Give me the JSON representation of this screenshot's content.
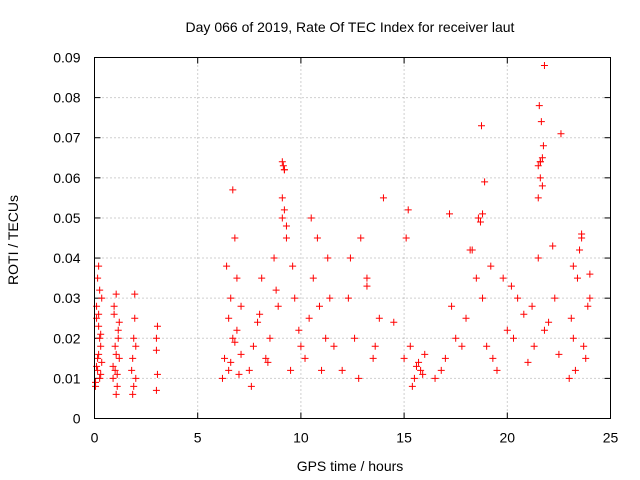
{
  "chart_data": {
    "type": "scatter",
    "title": "Day 066 of 2019, Rate Of TEC Index for receiver laut",
    "xlabel": "GPS time / hours",
    "ylabel": "ROTI / TECUs",
    "xlim": [
      0,
      25
    ],
    "ylim": [
      0,
      0.09
    ],
    "xticks": [
      0,
      5,
      10,
      15,
      20,
      25
    ],
    "xtick_labels": [
      "0",
      "5",
      "10",
      "15",
      "20",
      "25"
    ],
    "yticks": [
      0,
      0.01,
      0.02,
      0.03,
      0.04,
      0.05,
      0.06,
      0.07,
      0.08,
      0.09
    ],
    "ytick_labels": [
      "0",
      "0.01",
      "0.02",
      "0.03",
      "0.04",
      "0.05",
      "0.06",
      "0.07",
      "0.08",
      "0.09"
    ],
    "grid": true,
    "marker": "+",
    "color": "#ff0000",
    "series": [
      {
        "name": "ROTI",
        "x": [
          0.05,
          0.1,
          0.15,
          0.2,
          0.25,
          0.3,
          0.35,
          0.05,
          0.1,
          0.2,
          0.3,
          0.15,
          0.25,
          0.1,
          0.2,
          0.3,
          0.15,
          0.25,
          0.35,
          0.2,
          0.9,
          0.95,
          1.0,
          1.05,
          1.1,
          1.15,
          1.2,
          0.95,
          1.05,
          1.15,
          1.0,
          1.1,
          0.9,
          1.2,
          1.05,
          1.8,
          1.85,
          1.9,
          1.95,
          2.0,
          1.85,
          1.95,
          1.9,
          2.0,
          3.0,
          3.05,
          3.0,
          3.05,
          3.0,
          6.2,
          6.3,
          6.4,
          6.5,
          6.6,
          6.7,
          6.8,
          6.9,
          7.0,
          7.1,
          6.5,
          6.7,
          6.9,
          7.1,
          6.6,
          6.8,
          7.5,
          7.7,
          7.9,
          8.1,
          8.3,
          8.5,
          8.7,
          8.9,
          9.1,
          9.3,
          9.5,
          9.7,
          9.9,
          7.6,
          8.0,
          8.4,
          8.8,
          9.2,
          9.6,
          10.0,
          10.2,
          10.4,
          10.6,
          10.8,
          11.0,
          11.2,
          11.4,
          11.6,
          10.5,
          10.9,
          11.3,
          12.0,
          12.3,
          12.6,
          12.9,
          13.2,
          13.5,
          13.8,
          14.0,
          12.4,
          12.8,
          13.2,
          13.6,
          9.1,
          9.15,
          9.2,
          9.1,
          9.2,
          9.3,
          14.5,
          15.0,
          15.5,
          15.3,
          15.8,
          15.1,
          15.6,
          16.0,
          15.4,
          15.9,
          15.2,
          15.7,
          16.5,
          17.0,
          17.5,
          18.0,
          18.5,
          19.0,
          19.5,
          20.0,
          20.5,
          21.0,
          21.5,
          22.0,
          22.5,
          16.8,
          17.3,
          17.8,
          18.3,
          18.8,
          19.3,
          19.8,
          20.3,
          20.8,
          21.3,
          21.8,
          22.3,
          17.2,
          18.2,
          19.2,
          20.2,
          21.2,
          22.2,
          18.6,
          18.7,
          18.8,
          18.9,
          18.75,
          21.5,
          21.6,
          21.7,
          21.55,
          21.65,
          21.6,
          21.7,
          21.5,
          21.75,
          21.8,
          22.6,
          21.6,
          23.0,
          23.2,
          23.4,
          23.6,
          23.8,
          24.0,
          23.1,
          23.3,
          23.5,
          23.7,
          23.9,
          23.2,
          23.6,
          24.0
        ],
        "y": [
          0.009,
          0.025,
          0.015,
          0.038,
          0.02,
          0.011,
          0.03,
          0.008,
          0.013,
          0.023,
          0.018,
          0.035,
          0.01,
          0.028,
          0.016,
          0.021,
          0.012,
          0.032,
          0.014,
          0.026,
          0.01,
          0.026,
          0.012,
          0.031,
          0.008,
          0.02,
          0.015,
          0.028,
          0.006,
          0.022,
          0.018,
          0.011,
          0.013,
          0.024,
          0.016,
          0.012,
          0.006,
          0.02,
          0.031,
          0.01,
          0.015,
          0.025,
          0.008,
          0.018,
          0.007,
          0.011,
          0.017,
          0.023,
          0.02,
          0.01,
          0.015,
          0.038,
          0.012,
          0.03,
          0.02,
          0.045,
          0.035,
          0.011,
          0.016,
          0.025,
          0.057,
          0.022,
          0.028,
          0.014,
          0.019,
          0.012,
          0.018,
          0.024,
          0.035,
          0.015,
          0.02,
          0.04,
          0.028,
          0.05,
          0.045,
          0.012,
          0.03,
          0.022,
          0.008,
          0.026,
          0.014,
          0.032,
          0.062,
          0.038,
          0.018,
          0.015,
          0.025,
          0.035,
          0.045,
          0.012,
          0.02,
          0.03,
          0.018,
          0.05,
          0.028,
          0.04,
          0.012,
          0.03,
          0.02,
          0.045,
          0.035,
          0.015,
          0.025,
          0.055,
          0.04,
          0.01,
          0.033,
          0.018,
          0.064,
          0.063,
          0.062,
          0.055,
          0.052,
          0.048,
          0.024,
          0.015,
          0.01,
          0.018,
          0.012,
          0.045,
          0.013,
          0.016,
          0.008,
          0.011,
          0.052,
          0.014,
          0.01,
          0.015,
          0.02,
          0.025,
          0.035,
          0.018,
          0.012,
          0.022,
          0.03,
          0.014,
          0.04,
          0.024,
          0.016,
          0.012,
          0.028,
          0.018,
          0.042,
          0.03,
          0.015,
          0.035,
          0.02,
          0.026,
          0.018,
          0.022,
          0.03,
          0.051,
          0.042,
          0.038,
          0.033,
          0.028,
          0.043,
          0.05,
          0.049,
          0.051,
          0.059,
          0.073,
          0.063,
          0.064,
          0.065,
          0.078,
          0.074,
          0.06,
          0.058,
          0.055,
          0.068,
          0.088,
          0.071,
          0.064,
          0.01,
          0.02,
          0.035,
          0.045,
          0.015,
          0.03,
          0.025,
          0.012,
          0.042,
          0.018,
          0.028,
          0.038,
          0.046,
          0.036
        ]
      }
    ]
  }
}
